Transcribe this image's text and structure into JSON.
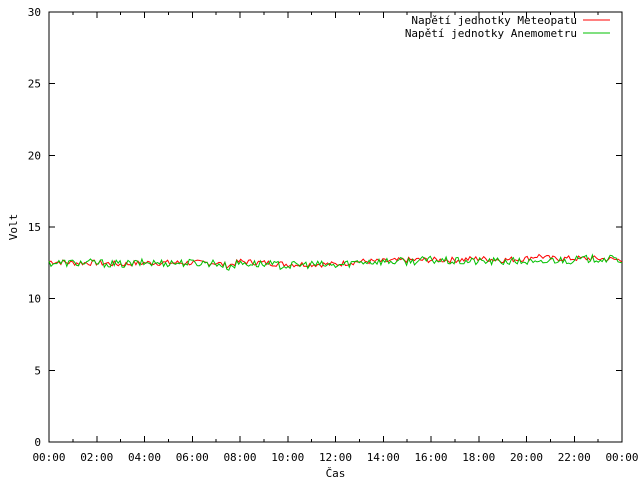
{
  "chart_data": {
    "type": "line",
    "title": "",
    "xlabel": "Čas",
    "ylabel": "Volt",
    "ylim": [
      0,
      30
    ],
    "yticks": [
      0,
      5,
      10,
      15,
      20,
      25,
      30
    ],
    "xlim_hours": [
      0,
      24
    ],
    "xtick_labels": [
      "00:00",
      "02:00",
      "04:00",
      "06:00",
      "08:00",
      "10:00",
      "12:00",
      "14:00",
      "16:00",
      "18:00",
      "20:00",
      "22:00",
      "00:00"
    ],
    "grid": false,
    "legend_position": "top-right",
    "x_hours": [
      0,
      1,
      2,
      3,
      4,
      5,
      6,
      7,
      7.5,
      8,
      9,
      10,
      11,
      12,
      13,
      14,
      15,
      16,
      17,
      18,
      19,
      20,
      20.5,
      21,
      22,
      23,
      24
    ],
    "series": [
      {
        "name": "Napětí jednotky Meteopatu",
        "color": "#ff0000",
        "values": [
          12.6,
          12.5,
          12.5,
          12.4,
          12.5,
          12.5,
          12.5,
          12.5,
          12.3,
          12.6,
          12.5,
          12.4,
          12.4,
          12.4,
          12.6,
          12.6,
          12.7,
          12.7,
          12.7,
          12.8,
          12.7,
          12.8,
          13.0,
          12.8,
          12.8,
          12.8,
          12.7
        ]
      },
      {
        "name": "Napětí jednotky Anemometru",
        "color": "#00c000",
        "values": [
          12.5,
          12.5,
          12.5,
          12.4,
          12.5,
          12.5,
          12.5,
          12.5,
          12.2,
          12.5,
          12.4,
          12.3,
          12.4,
          12.3,
          12.6,
          12.6,
          12.6,
          12.7,
          12.6,
          12.6,
          12.6,
          12.6,
          12.4,
          12.7,
          12.7,
          12.8,
          12.7
        ]
      }
    ]
  }
}
